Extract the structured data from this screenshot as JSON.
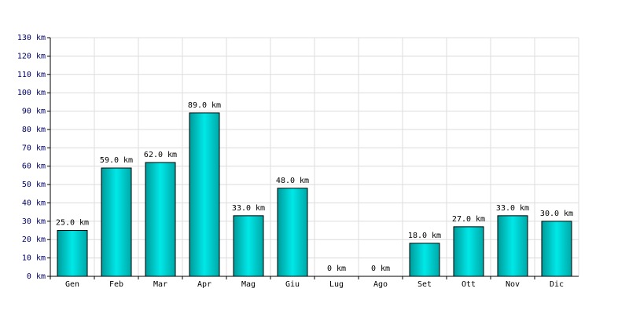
{
  "chart_data": {
    "type": "bar",
    "categories": [
      "Gen",
      "Feb",
      "Mar",
      "Apr",
      "Mag",
      "Giu",
      "Lug",
      "Ago",
      "Set",
      "Ott",
      "Nov",
      "Dic"
    ],
    "values": [
      25,
      59,
      62,
      89,
      33,
      48,
      0,
      0,
      18,
      27,
      33,
      30
    ],
    "value_labels": [
      "25.0 km",
      "59.0 km",
      "62.0 km",
      "89.0 km",
      "33.0 km",
      "48.0 km",
      "0 km",
      "0 km",
      "18.0 km",
      "27.0 km",
      "33.0 km",
      "30.0 km"
    ],
    "color": "#00e8e8",
    "ylim": [
      0,
      130
    ],
    "yticks": [
      {
        "value": 0,
        "label": "0 km"
      },
      {
        "value": 10,
        "label": "10 km"
      },
      {
        "value": 20,
        "label": "20 km"
      },
      {
        "value": 30,
        "label": "30 km"
      },
      {
        "value": 40,
        "label": "40 km"
      },
      {
        "value": 50,
        "label": "50 km"
      },
      {
        "value": 60,
        "label": "60 km"
      },
      {
        "value": 70,
        "label": "70 km"
      },
      {
        "value": 80,
        "label": "80 km"
      },
      {
        "value": 90,
        "label": "90 km"
      },
      {
        "value": 100,
        "label": "100 km"
      },
      {
        "value": 110,
        "label": "110 km"
      },
      {
        "value": 120,
        "label": "120 km"
      },
      {
        "value": 130,
        "label": "130 km"
      }
    ],
    "grid": true
  }
}
